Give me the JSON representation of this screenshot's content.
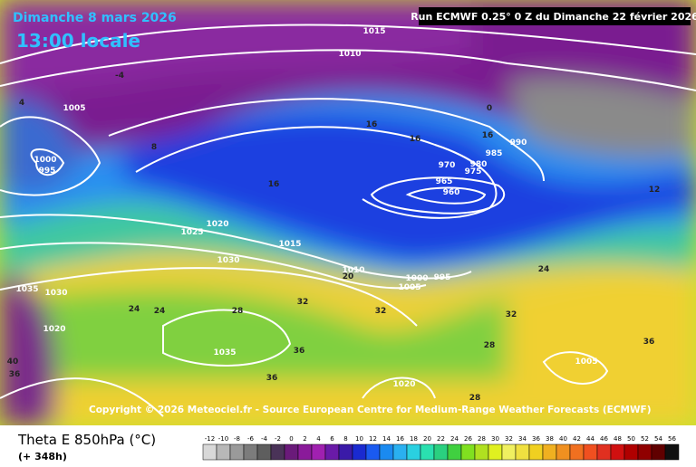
{
  "header": {
    "date": "Dimanche 8 mars 2026",
    "time": "13:00 locale",
    "run": "Run ECMWF 0.25° 0 Z du Dimanche 22 février 2026"
  },
  "map": {
    "copyright": "Copyright © 2026 Meteociel.fr - Source European Centre for Medium-Range Weather Forecasts (ECMWF)",
    "isobar_labels": [
      1015,
      1010,
      1005,
      1000,
      995,
      990,
      985,
      980,
      975,
      970,
      965,
      960,
      1020,
      1025,
      1030,
      1035,
      1015,
      1010,
      1005,
      1000,
      995,
      1020,
      1035,
      1020,
      1030,
      1005
    ],
    "temperature_labels": [
      16,
      16,
      16,
      16,
      12,
      20,
      24,
      24,
      28,
      32,
      32,
      36,
      36,
      36,
      28,
      28,
      24,
      32,
      36,
      40,
      -4,
      4,
      0,
      8
    ]
  },
  "footer": {
    "parameter": "Theta E 850hPa (°C)",
    "lead": "(+ 348h)"
  },
  "colorbar": {
    "ticks": [
      -12,
      -10,
      -8,
      -6,
      -4,
      -2,
      0,
      2,
      4,
      6,
      8,
      10,
      12,
      14,
      16,
      18,
      20,
      22,
      24,
      26,
      28,
      30,
      32,
      34,
      36,
      38,
      40,
      42,
      44,
      46,
      48,
      50,
      52,
      54,
      56
    ],
    "colors": [
      "#d8d8d8",
      "#b8b8b8",
      "#9a9a9a",
      "#7c7c7c",
      "#5e5e5e",
      "#4a3358",
      "#6a1a7a",
      "#8a1a9a",
      "#a020b0",
      "#6a1aa8",
      "#3a1aa8",
      "#1a2ad0",
      "#1a5af0",
      "#1a8af0",
      "#2ab0f0",
      "#2ad0e0",
      "#2ae0b0",
      "#2ad080",
      "#40d040",
      "#80e020",
      "#b0e020",
      "#e0f020",
      "#f0f060",
      "#f0e040",
      "#f0d020",
      "#f0b020",
      "#f09020",
      "#f07020",
      "#f05020",
      "#e03020",
      "#d01010",
      "#b00000",
      "#900000",
      "#600000",
      "#101010"
    ]
  }
}
